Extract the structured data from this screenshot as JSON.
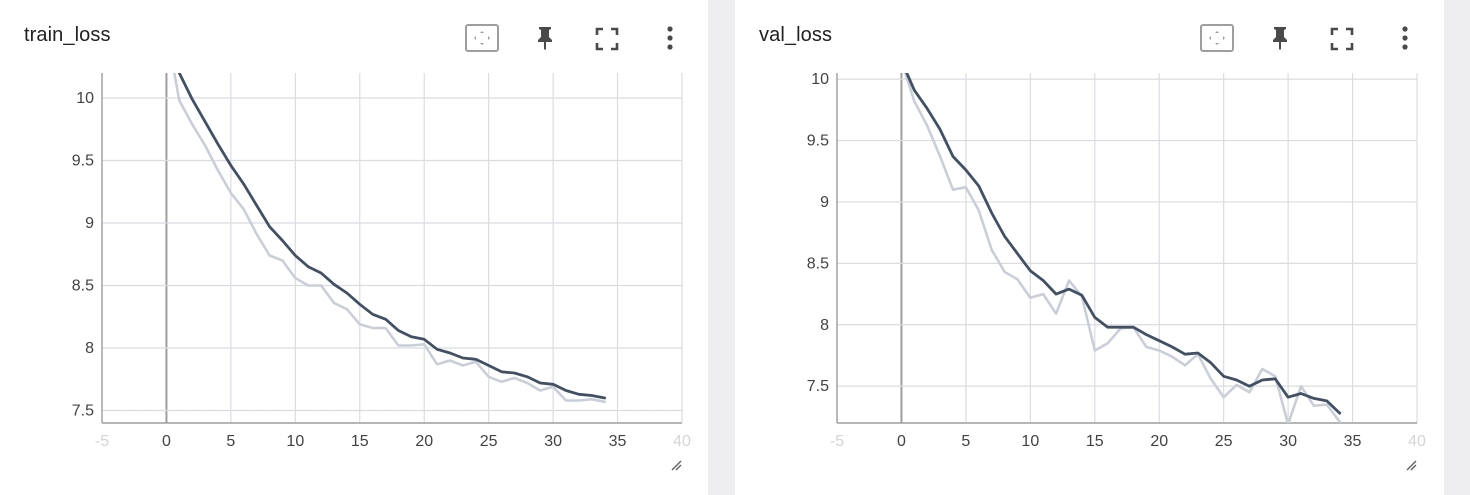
{
  "colors": {
    "background": "#eeeef0",
    "card": "#ffffff",
    "grid": "#dadce0",
    "axis": "#9e9e9e",
    "tick_label": "#424242",
    "smoothed_line": "#425066",
    "raw_line": "#c9ced8",
    "icon": "#4a4a4a",
    "icon_muted": "#9e9e9e"
  },
  "toolbar_icons": [
    "fit-domain-icon",
    "pin-icon",
    "fullscreen-icon",
    "more-vert-icon"
  ],
  "cards": [
    {
      "title": "train_loss"
    },
    {
      "title": "val_loss"
    }
  ],
  "chart_data": [
    {
      "type": "line",
      "title": "train_loss",
      "xlabel": "",
      "ylabel": "",
      "xlim": [
        -5,
        40
      ],
      "ylim": [
        7.4,
        10.2
      ],
      "xticks": [
        -5,
        0,
        5,
        10,
        15,
        20,
        25,
        30,
        35,
        40
      ],
      "xtick_labels": [
        "-5",
        "0",
        "5",
        "10",
        "15",
        "20",
        "25",
        "30",
        "35",
        "40"
      ],
      "yticks": [
        7.5,
        8,
        8.5,
        9,
        9.5,
        10
      ],
      "ytick_labels": [
        "7.5",
        "8",
        "8.5",
        "9",
        "9.5",
        "10"
      ],
      "grid": true,
      "series": [
        {
          "role": "raw",
          "x": [
            0,
            1,
            2,
            3,
            4,
            5,
            6,
            7,
            8,
            9,
            10,
            11,
            12,
            13,
            14,
            15,
            16,
            17,
            18,
            19,
            20,
            21,
            22,
            23,
            24,
            25,
            26,
            27,
            28,
            29,
            30,
            31,
            32,
            33,
            34
          ],
          "y": [
            10.55,
            9.98,
            9.79,
            9.62,
            9.42,
            9.24,
            9.11,
            8.91,
            8.74,
            8.7,
            8.56,
            8.5,
            8.5,
            8.36,
            8.31,
            8.19,
            8.16,
            8.16,
            8.02,
            8.02,
            8.03,
            7.87,
            7.9,
            7.86,
            7.89,
            7.77,
            7.73,
            7.76,
            7.72,
            7.66,
            7.69,
            7.58,
            7.58,
            7.59,
            7.57
          ]
        },
        {
          "role": "smoothed",
          "x": [
            0,
            1,
            2,
            3,
            4,
            5,
            6,
            7,
            8,
            9,
            10,
            11,
            12,
            13,
            14,
            15,
            16,
            17,
            18,
            19,
            20,
            21,
            22,
            23,
            24,
            25,
            26,
            27,
            28,
            29,
            30,
            31,
            32,
            33,
            34
          ],
          "y": [
            10.55,
            10.2,
            9.99,
            9.81,
            9.63,
            9.46,
            9.31,
            9.14,
            8.97,
            8.86,
            8.74,
            8.65,
            8.6,
            8.51,
            8.44,
            8.35,
            8.27,
            8.23,
            8.14,
            8.09,
            8.07,
            7.99,
            7.96,
            7.92,
            7.91,
            7.86,
            7.81,
            7.8,
            7.77,
            7.72,
            7.71,
            7.66,
            7.63,
            7.62,
            7.6
          ]
        }
      ]
    },
    {
      "type": "line",
      "title": "val_loss",
      "xlabel": "",
      "ylabel": "",
      "xlim": [
        -5,
        40
      ],
      "ylim": [
        7.2,
        10.05
      ],
      "xticks": [
        -5,
        0,
        5,
        10,
        15,
        20,
        25,
        30,
        35,
        40
      ],
      "xtick_labels": [
        "-5",
        "0",
        "5",
        "10",
        "15",
        "20",
        "25",
        "30",
        "35",
        "40"
      ],
      "yticks": [
        7.5,
        8,
        8.5,
        9,
        9.5,
        10
      ],
      "ytick_labels": [
        "7.5",
        "8",
        "8.5",
        "9",
        "9.5",
        "10"
      ],
      "grid": true,
      "series": [
        {
          "role": "raw",
          "x": [
            0,
            1,
            2,
            3,
            4,
            5,
            6,
            7,
            8,
            9,
            10,
            11,
            12,
            13,
            14,
            15,
            16,
            17,
            18,
            19,
            20,
            21,
            22,
            23,
            24,
            25,
            26,
            27,
            28,
            29,
            30,
            31,
            32,
            33,
            34
          ],
          "y": [
            10.15,
            9.82,
            9.62,
            9.37,
            9.1,
            9.12,
            8.93,
            8.61,
            8.43,
            8.37,
            8.22,
            8.25,
            8.09,
            8.36,
            8.23,
            7.79,
            7.85,
            7.97,
            7.98,
            7.82,
            7.79,
            7.74,
            7.67,
            7.76,
            7.56,
            7.41,
            7.51,
            7.45,
            7.64,
            7.58,
            7.19,
            7.5,
            7.34,
            7.35,
            7.21
          ]
        },
        {
          "role": "smoothed",
          "x": [
            0,
            1,
            2,
            3,
            4,
            5,
            6,
            7,
            8,
            9,
            10,
            11,
            12,
            13,
            14,
            15,
            16,
            17,
            18,
            19,
            20,
            21,
            22,
            23,
            24,
            25,
            26,
            27,
            28,
            29,
            30,
            31,
            32,
            33,
            34
          ],
          "y": [
            10.15,
            9.91,
            9.76,
            9.59,
            9.37,
            9.26,
            9.13,
            8.91,
            8.72,
            8.58,
            8.44,
            8.36,
            8.25,
            8.29,
            8.24,
            8.06,
            7.98,
            7.98,
            7.98,
            7.92,
            7.87,
            7.82,
            7.76,
            7.77,
            7.69,
            7.58,
            7.55,
            7.5,
            7.55,
            7.56,
            7.41,
            7.44,
            7.4,
            7.38,
            7.28
          ]
        }
      ]
    }
  ]
}
